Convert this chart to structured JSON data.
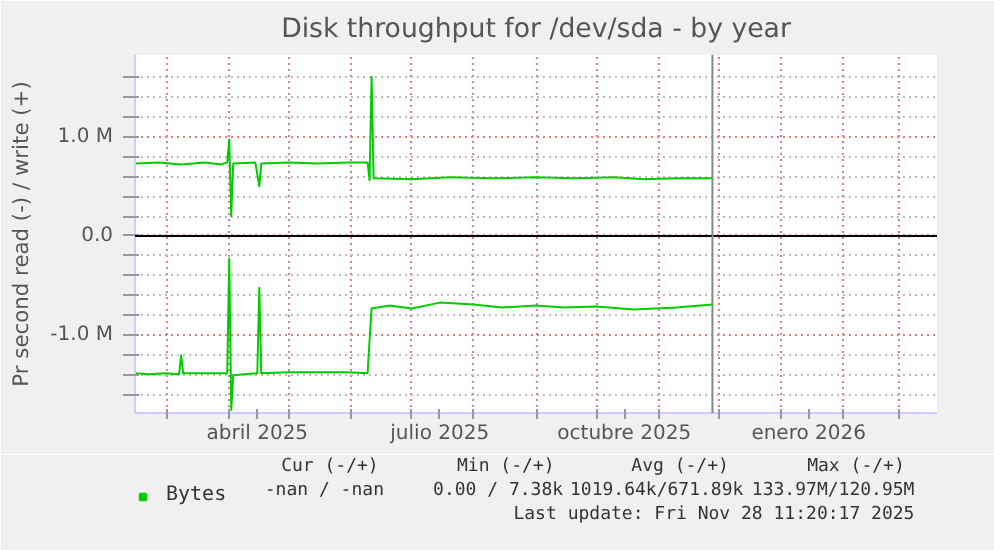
{
  "chart_data": {
    "type": "line",
    "title": "Disk throughput for /dev/sda - by year",
    "ylabel": "Pr second read (-) / write (+)",
    "xlim": [
      "2025-02-13",
      "2026-03-20"
    ],
    "ylim": [
      -1780000,
      1820000
    ],
    "xticks": [
      {
        "value": "2025-03-01",
        "label": null
      },
      {
        "value": "2025-04-01",
        "label": null
      },
      {
        "value": "2025-04-15",
        "label": "abril 2025"
      },
      {
        "value": "2025-05-01",
        "label": null
      },
      {
        "value": "2025-06-01",
        "label": null
      },
      {
        "value": "2025-07-01",
        "label": null
      },
      {
        "value": "2025-07-15",
        "label": "julio 2025"
      },
      {
        "value": "2025-08-01",
        "label": null
      },
      {
        "value": "2025-09-01",
        "label": null
      },
      {
        "value": "2025-10-01",
        "label": null
      },
      {
        "value": "2025-10-15",
        "label": "octubre 2025"
      },
      {
        "value": "2025-11-01",
        "label": null
      },
      {
        "value": "2025-12-01",
        "label": null
      },
      {
        "value": "2026-01-01",
        "label": null
      },
      {
        "value": "2026-01-15",
        "label": "enero 2026"
      },
      {
        "value": "2026-02-01",
        "label": null
      },
      {
        "value": "2026-03-01",
        "label": null
      }
    ],
    "yticks": [
      {
        "value": -1600000,
        "label": null
      },
      {
        "value": -1400000,
        "label": null
      },
      {
        "value": -1200000,
        "label": null
      },
      {
        "value": -1000000,
        "label": "-1.0 M"
      },
      {
        "value": -800000,
        "label": null
      },
      {
        "value": -600000,
        "label": null
      },
      {
        "value": -400000,
        "label": null
      },
      {
        "value": -200000,
        "label": null
      },
      {
        "value": 0,
        "label": "0.0"
      },
      {
        "value": 200000,
        "label": null
      },
      {
        "value": 400000,
        "label": null
      },
      {
        "value": 600000,
        "label": null
      },
      {
        "value": 800000,
        "label": null
      },
      {
        "value": 1000000,
        "label": "1.0 M"
      },
      {
        "value": 1200000,
        "label": null
      },
      {
        "value": 1400000,
        "label": null
      },
      {
        "value": 1600000,
        "label": null
      }
    ],
    "grid": true,
    "legend": "bottom left",
    "line_style": "solid",
    "series": [
      {
        "name": "Bytes",
        "color": "#00cc00",
        "x": [
          "2025-02-13",
          "2025-02-25",
          "2025-03-08",
          "2025-03-20",
          "2025-03-28",
          "2025-03-31",
          "2025-04-01",
          "2025-04-02",
          "2025-04-03",
          "2025-04-14",
          "2025-04-16",
          "2025-04-17",
          "2025-05-01",
          "2025-05-15",
          "2025-05-31",
          "2025-06-09",
          "2025-06-10",
          "2025-06-11",
          "2025-06-12",
          "2025-07-01",
          "2025-07-20",
          "2025-08-10",
          "2025-09-01",
          "2025-09-20",
          "2025-10-10",
          "2025-10-25",
          "2025-11-10",
          "2025-11-28"
        ],
        "values": [
          730000,
          740000,
          720000,
          740000,
          720000,
          740000,
          970000,
          200000,
          730000,
          740000,
          500000,
          730000,
          740000,
          730000,
          740000,
          740000,
          560000,
          1600000,
          580000,
          570000,
          590000,
          580000,
          590000,
          580000,
          590000,
          570000,
          580000,
          580000
        ]
      },
      {
        "color": "#00cc00",
        "x": [
          "2025-02-13",
          "2025-02-20",
          "2025-02-28",
          "2025-03-07",
          "2025-03-08",
          "2025-03-09",
          "2025-03-31",
          "2025-04-01",
          "2025-04-02",
          "2025-04-03",
          "2025-04-15",
          "2025-04-16",
          "2025-04-17",
          "2025-05-01",
          "2025-05-30",
          "2025-06-09",
          "2025-06-10",
          "2025-06-11",
          "2025-06-20",
          "2025-07-01",
          "2025-07-15",
          "2025-08-01",
          "2025-08-15",
          "2025-09-01",
          "2025-09-15",
          "2025-10-01",
          "2025-10-20",
          "2025-11-10",
          "2025-11-28"
        ],
        "values": [
          -1380000,
          -1390000,
          -1380000,
          -1390000,
          -1200000,
          -1380000,
          -1380000,
          -230000,
          -1750000,
          -1400000,
          -1380000,
          -520000,
          -1380000,
          -1370000,
          -1370000,
          -1380000,
          -1050000,
          -730000,
          -700000,
          -730000,
          -670000,
          -690000,
          -720000,
          -700000,
          -720000,
          -710000,
          -740000,
          -720000,
          -690000
        ]
      }
    ],
    "ref_lines": [
      {
        "axis": "y",
        "value": 0,
        "label": null,
        "color": "#000000"
      },
      {
        "axis": "x",
        "value": "2025-11-28",
        "label": null,
        "color": "#888888"
      }
    ],
    "annotations": [
      "Cur (-/+)",
      "Min (-/+)",
      "Avg (-/+)",
      "Max (-/+)",
      "-nan /  -nan",
      "0.00 /  7.38k",
      "1019.64k/671.89k",
      "133.97M/120.95M",
      "Last update: Fri Nov 28 11:20:17 2025"
    ]
  }
}
